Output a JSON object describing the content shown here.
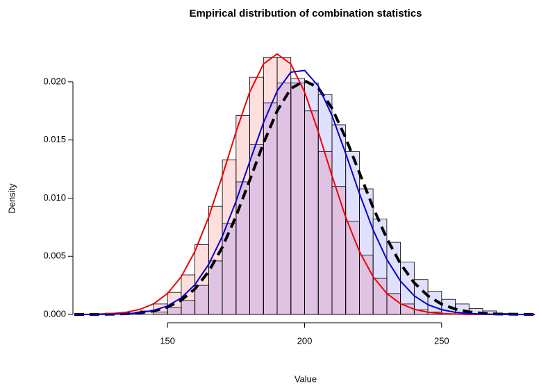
{
  "chart_data": {
    "type": "histogram",
    "title": "Empirical distribution of combination statistics",
    "xlabel": "Value",
    "ylabel": "Density",
    "xlim": [
      116,
      284
    ],
    "ylim": [
      0,
      0.0225
    ],
    "xticks": [
      150,
      200,
      250
    ],
    "yticks": [
      {
        "value": 0,
        "label": "0.000"
      },
      {
        "value": 0.005,
        "label": "0.005"
      },
      {
        "value": 0.01,
        "label": "0.010"
      },
      {
        "value": 0.015,
        "label": "0.015"
      },
      {
        "value": 0.02,
        "label": "0.020"
      }
    ],
    "histograms": [
      {
        "color": "rgba(255,0,0,0.13)",
        "edgecolor": "#000000",
        "bins": [
          135,
          140,
          145,
          150,
          155,
          160,
          165,
          170,
          175,
          180,
          185,
          190,
          195,
          200,
          205,
          210,
          215,
          220,
          225,
          230,
          235,
          240,
          245,
          250
        ],
        "values": [
          0.0001,
          0.0003,
          0.0009,
          0.0019,
          0.0034,
          0.006,
          0.0093,
          0.0133,
          0.0171,
          0.0204,
          0.0221,
          0.0221,
          0.0199,
          0.0175,
          0.014,
          0.011,
          0.008,
          0.0051,
          0.0031,
          0.0018,
          0.0009,
          0.0004,
          0.0002
        ]
      },
      {
        "color": "rgba(0,0,255,0.12)",
        "edgecolor": "#000000",
        "bins": [
          145,
          150,
          155,
          160,
          165,
          170,
          175,
          180,
          185,
          190,
          195,
          200,
          205,
          210,
          215,
          220,
          225,
          230,
          235,
          240,
          245,
          250,
          255,
          260,
          265,
          270,
          275
        ],
        "values": [
          0.0002,
          0.0006,
          0.0012,
          0.0025,
          0.0046,
          0.0078,
          0.0114,
          0.0146,
          0.0182,
          0.0199,
          0.0203,
          0.0199,
          0.0189,
          0.0163,
          0.014,
          0.0108,
          0.0082,
          0.0062,
          0.0045,
          0.003,
          0.002,
          0.0013,
          0.0009,
          0.0005,
          0.0003,
          0.0001
        ]
      }
    ],
    "curve_x": [
      116,
      120,
      125,
      130,
      135,
      140,
      145,
      150,
      155,
      160,
      165,
      170,
      175,
      180,
      185,
      190,
      195,
      200,
      205,
      210,
      215,
      220,
      225,
      230,
      235,
      240,
      245,
      250,
      255,
      260,
      265,
      270,
      275,
      280,
      284
    ],
    "curves": [
      {
        "color": "#000000",
        "linestyle": "dashed",
        "width": 4,
        "values": [
          0,
          0,
          1e-05,
          2e-05,
          6e-05,
          0.00014,
          0.0003,
          0.00063,
          0.00122,
          0.00219,
          0.00368,
          0.00578,
          0.00845,
          0.01155,
          0.01471,
          0.0175,
          0.01942,
          0.0201,
          0.01948,
          0.01774,
          0.01517,
          0.01219,
          0.0092,
          0.00653,
          0.00435,
          0.00272,
          0.0016,
          0.00088,
          0.00046,
          0.00022,
          0.0001,
          4e-05,
          2e-05,
          1e-05,
          0
        ]
      },
      {
        "color": "#ee0000",
        "linestyle": "solid",
        "width": 2,
        "values": [
          0,
          0,
          3e-05,
          8e-05,
          0.00019,
          0.00044,
          0.00092,
          0.0018,
          0.00324,
          0.00542,
          0.00836,
          0.01192,
          0.0157,
          0.01913,
          0.02153,
          0.0224,
          0.02153,
          0.01913,
          0.0157,
          0.01192,
          0.00836,
          0.00542,
          0.00324,
          0.0018,
          0.00092,
          0.00044,
          0.00019,
          8e-05,
          3e-05,
          1e-05,
          0,
          0,
          0,
          0,
          0
        ]
      },
      {
        "color": "#0000cc",
        "linestyle": "solid",
        "width": 2,
        "values": [
          0,
          0,
          1e-05,
          2e-05,
          6e-05,
          0.00015,
          0.00035,
          0.00073,
          0.00142,
          0.00256,
          0.0043,
          0.00671,
          0.00974,
          0.01315,
          0.01648,
          0.01922,
          0.02083,
          0.02098,
          0.01965,
          0.0171,
          0.01384,
          0.0104,
          0.00727,
          0.00473,
          0.00286,
          0.0016,
          0.00084,
          0.00041,
          0.00018,
          8e-05,
          3e-05,
          1e-05,
          0,
          0,
          0
        ]
      }
    ]
  }
}
